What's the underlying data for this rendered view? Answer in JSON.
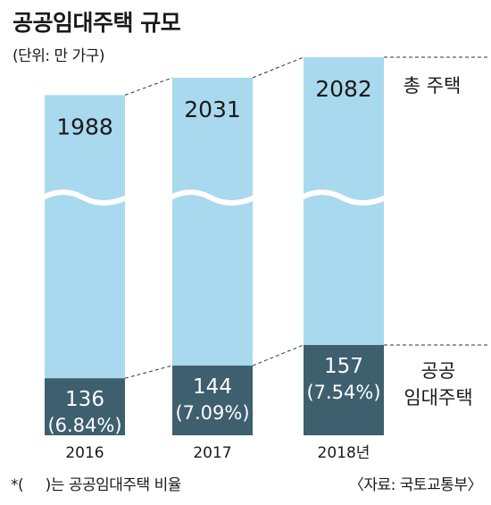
{
  "title": "공공임대주택 규모",
  "unit": "(단위: 만 가구)",
  "chart_data": {
    "type": "bar",
    "stacked": true,
    "axis_break": true,
    "categories": [
      "2016",
      "2017",
      "2018년"
    ],
    "series": [
      {
        "name": "공공\n임대주택",
        "values": [
          136,
          144,
          157
        ],
        "ratio_labels": [
          "(6.84%)",
          "(7.09%)",
          "(7.54%)"
        ],
        "color": "#3d5f6e"
      },
      {
        "name": "총 주택",
        "values": [
          1988,
          2031,
          2082
        ],
        "color": "#a9d9ee"
      }
    ],
    "legend": [
      "총 주택",
      "공공\n임대주택"
    ],
    "legend_placement": "right"
  },
  "footnote": "*(     )는 공공임대주택 비율",
  "source": "〈자료: 국토교통부〉"
}
